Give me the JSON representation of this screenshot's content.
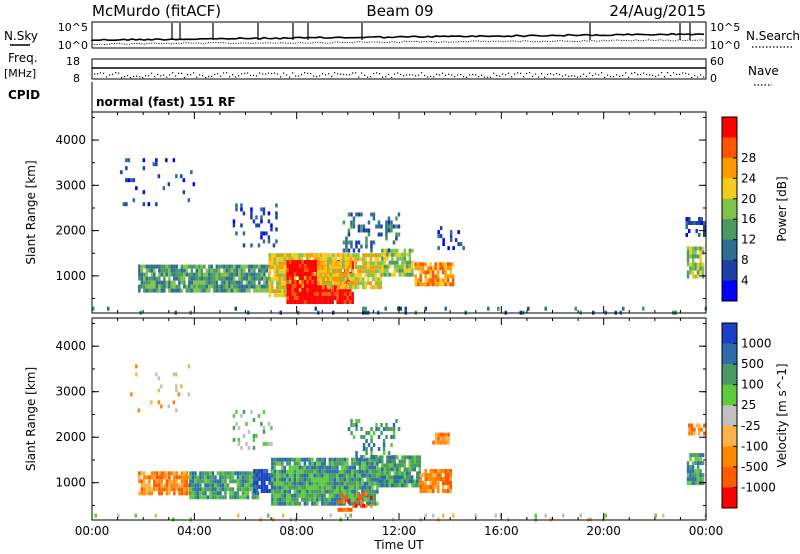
{
  "header": {
    "station": "McMurdo (fitACF)",
    "beam": "Beam 09",
    "date": "24/Aug/2015"
  },
  "status_panel": {
    "left_labels": {
      "nsky": "N.Sky",
      "freq": "Freq.",
      "freq_unit": "[MHz]",
      "cpid": "CPID"
    },
    "right_labels": {
      "nsearch": "N.Search",
      "nave": "Nave"
    },
    "noise_ticks": {
      "top_left": "10^5",
      "bottom_left": "10^0",
      "top_right": "10^5",
      "bottom_right": "10^0"
    },
    "freq_ticks": [
      "18",
      "8"
    ],
    "nave_ticks": [
      "60",
      "0"
    ],
    "cpid_text": "normal (fast) 151 RF"
  },
  "chart_data": [
    {
      "type": "heatmap",
      "name": "power",
      "ylabel": "Slant Range [km]",
      "xlabel": "",
      "xlim": [
        0,
        24
      ],
      "ylim": [
        180,
        4620
      ],
      "yticks": [
        "1000",
        "2000",
        "3000",
        "4000"
      ],
      "colorbar": {
        "label": "Power [dB]",
        "ticks": [
          "4",
          "8",
          "12",
          "16",
          "20",
          "24",
          "28"
        ],
        "colors": [
          "#0000ff",
          "#1c3fa8",
          "#2e6e92",
          "#4a9a64",
          "#7ec44a",
          "#f2cc1e",
          "#ff9a00",
          "#ff5500",
          "#ff0000"
        ]
      },
      "blobs": [
        {
          "t0": 0.0,
          "t1": 24.0,
          "r0": 200,
          "r1": 320,
          "level": 2,
          "density": 0.08
        },
        {
          "t0": 1.8,
          "t1": 6.9,
          "r0": 650,
          "r1": 1250,
          "level": 3,
          "density": 0.9
        },
        {
          "t0": 6.9,
          "t1": 8.8,
          "r0": 600,
          "r1": 1500,
          "level": 5,
          "density": 0.9
        },
        {
          "t0": 7.6,
          "t1": 10.2,
          "r0": 420,
          "r1": 1350,
          "level": 8,
          "density": 0.95
        },
        {
          "t0": 8.8,
          "t1": 11.3,
          "r0": 750,
          "r1": 1500,
          "level": 5,
          "density": 0.9
        },
        {
          "t0": 11.3,
          "t1": 12.5,
          "r0": 1000,
          "r1": 1600,
          "level": 4,
          "density": 0.85
        },
        {
          "t0": 12.6,
          "t1": 14.1,
          "r0": 800,
          "r1": 1300,
          "level": 6,
          "density": 0.85
        },
        {
          "t0": 5.5,
          "t1": 7.2,
          "r0": 1700,
          "r1": 2600,
          "level": 1,
          "density": 0.2
        },
        {
          "t0": 9.8,
          "t1": 12.0,
          "r0": 1550,
          "r1": 2400,
          "level": 2,
          "density": 0.3
        },
        {
          "t0": 13.5,
          "t1": 14.5,
          "r0": 1600,
          "r1": 2100,
          "level": 1,
          "density": 0.2
        },
        {
          "t0": 1.0,
          "t1": 4.0,
          "r0": 2600,
          "r1": 3600,
          "level": 1,
          "density": 0.08
        },
        {
          "t0": 23.25,
          "t1": 23.9,
          "r0": 1000,
          "r1": 1650,
          "level": 4,
          "density": 0.8
        },
        {
          "t0": 23.2,
          "t1": 23.9,
          "r0": 1900,
          "r1": 2300,
          "level": 1,
          "density": 0.5
        }
      ]
    },
    {
      "type": "heatmap",
      "name": "velocity",
      "ylabel": "Slant Range [km]",
      "xlabel": "Time UT",
      "xlim": [
        0,
        24
      ],
      "ylim": [
        180,
        4620
      ],
      "xticks": [
        "00:00",
        "04:00",
        "08:00",
        "12:00",
        "16:00",
        "20:00",
        "00:00"
      ],
      "yticks": [
        "1000",
        "2000",
        "3000",
        "4000"
      ],
      "colorbar": {
        "label": "Velocity [m s^-1]",
        "ticks": [
          "1000",
          "500",
          "100",
          "25",
          "-25",
          "-100",
          "-500",
          "-1000"
        ],
        "colors": [
          "#1a3fc8",
          "#2e6ea8",
          "#4a9a64",
          "#5ecb3c",
          "#c0c0c0",
          "#ffb14a",
          "#ff8800",
          "#ff5a00",
          "#ff0000"
        ]
      },
      "blobs": [
        {
          "t0": 0.0,
          "t1": 24.0,
          "r0": 200,
          "r1": 320,
          "level": 4,
          "density": 0.06
        },
        {
          "t0": 1.8,
          "t1": 3.8,
          "r0": 750,
          "r1": 1250,
          "level": 6,
          "density": 0.85
        },
        {
          "t0": 3.8,
          "t1": 6.5,
          "r0": 700,
          "r1": 1250,
          "level": 2,
          "density": 0.9
        },
        {
          "t0": 6.3,
          "t1": 7.0,
          "r0": 800,
          "r1": 1300,
          "level": 0,
          "density": 0.9
        },
        {
          "t0": 7.0,
          "t1": 11.2,
          "r0": 500,
          "r1": 1550,
          "level": 2,
          "density": 0.92
        },
        {
          "t0": 9.5,
          "t1": 11.0,
          "r0": 420,
          "r1": 800,
          "level": 7,
          "density": 0.4
        },
        {
          "t0": 11.2,
          "t1": 12.8,
          "r0": 950,
          "r1": 1600,
          "level": 2,
          "density": 0.85
        },
        {
          "t0": 12.8,
          "t1": 14.0,
          "r0": 800,
          "r1": 1300,
          "level": 6,
          "density": 0.85
        },
        {
          "t0": 13.3,
          "t1": 13.9,
          "r0": 1900,
          "r1": 2100,
          "level": 6,
          "density": 0.9
        },
        {
          "t0": 5.5,
          "t1": 7.0,
          "r0": 1800,
          "r1": 2600,
          "level": 3,
          "density": 0.25
        },
        {
          "t0": 10.0,
          "t1": 12.0,
          "r0": 1550,
          "r1": 2400,
          "level": 2,
          "density": 0.3
        },
        {
          "t0": 1.0,
          "t1": 4.0,
          "r0": 2600,
          "r1": 3600,
          "level": 5,
          "density": 0.06
        },
        {
          "t0": 23.25,
          "t1": 23.9,
          "r0": 1000,
          "r1": 1650,
          "level": 2,
          "density": 0.8
        },
        {
          "t0": 23.3,
          "t1": 23.9,
          "r0": 2050,
          "r1": 2300,
          "level": 6,
          "density": 0.7
        }
      ]
    }
  ]
}
